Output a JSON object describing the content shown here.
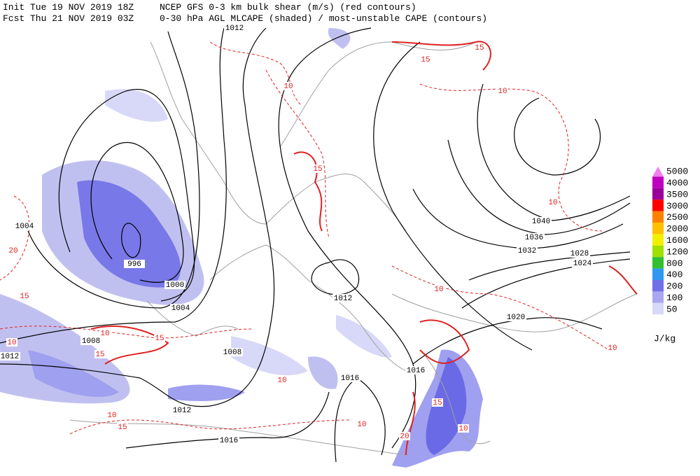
{
  "header": {
    "init": "Init  Tue 19 NOV 2019 18Z",
    "product1": "NCEP GFS 0-3 km bulk shear (m/s) (red contours)",
    "forecast": "Fcst Thu 21 NOV 2019 03Z",
    "product2": "0-30 hPa AGL MLCAPE (shaded) / most-unstable CAPE (contours)"
  },
  "colorbar": {
    "levels": [
      5000,
      4000,
      3500,
      3000,
      2500,
      2000,
      1600,
      1200,
      800,
      400,
      200,
      100,
      50
    ],
    "colors": [
      "#f080f0",
      "#c000c0",
      "#9a009a",
      "#ff0000",
      "#ff8000",
      "#ffc000",
      "#f0f000",
      "#a0e000",
      "#30c030",
      "#3098f0",
      "#7070e8",
      "#a8a8f0",
      "#d8d8f8"
    ],
    "unit": "J/kg"
  },
  "isobar_labels": [
    1012,
    1004,
    996,
    1000,
    1004,
    1008,
    1012,
    1008,
    1012,
    1016,
    1016,
    1016,
    1012,
    1020,
    1024,
    1028,
    1032,
    1036,
    1040
  ],
  "shear_labels": [
    10,
    10,
    10,
    10,
    10,
    10,
    10,
    10,
    10,
    10,
    10,
    15,
    15,
    15,
    15,
    15,
    15,
    15,
    20,
    20,
    15
  ]
}
